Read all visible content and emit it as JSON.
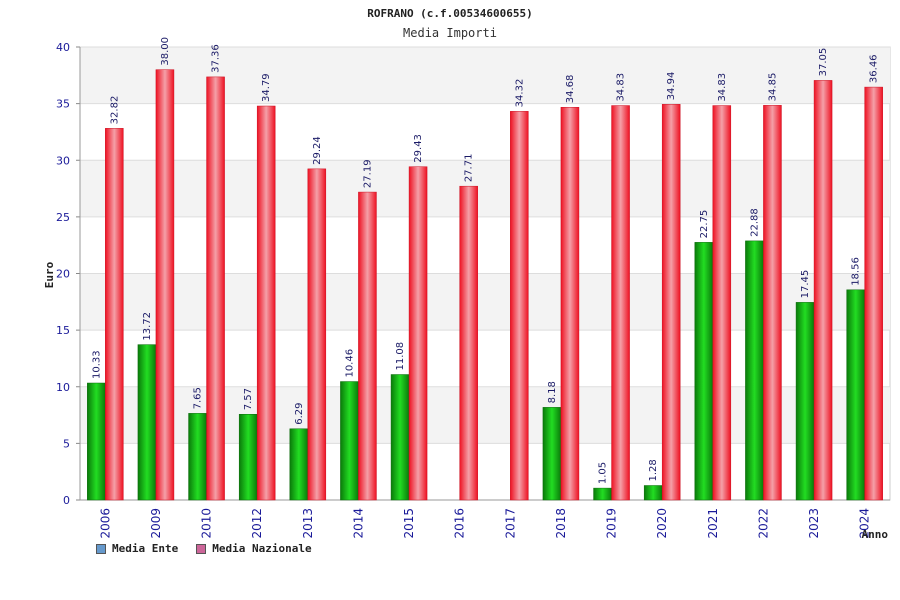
{
  "chart_data": {
    "type": "bar",
    "title": "ROFRANO (c.f.00534600655)",
    "subtitle": "Media Importi",
    "ylabel": "Euro",
    "xlabel": "Anno",
    "ylim": [
      0,
      40
    ],
    "yticks": [
      0,
      5,
      10,
      15,
      20,
      25,
      30,
      35,
      40
    ],
    "grid": true,
    "legend_position": "bottom-left",
    "categories": [
      "2006",
      "2009",
      "2010",
      "2012",
      "2013",
      "2014",
      "2015",
      "2016",
      "2017",
      "2018",
      "2019",
      "2020",
      "2021",
      "2022",
      "2023",
      "2024"
    ],
    "series": [
      {
        "name": "Media Ente",
        "legend_color": "#6699cc",
        "bar_color": "#11bb11",
        "values": [
          10.33,
          13.72,
          7.65,
          7.57,
          6.29,
          10.46,
          11.08,
          null,
          null,
          8.18,
          1.05,
          1.28,
          22.75,
          22.88,
          17.45,
          18.56
        ],
        "labels": [
          "10.33",
          "13.72",
          "7.65",
          "7.57",
          "6.29",
          "10.46",
          "11.08",
          "",
          "",
          "8.18",
          "1.05",
          "1.28",
          "22.75",
          "22.88",
          "17.45",
          "18.56"
        ]
      },
      {
        "name": "Media Nazionale",
        "legend_color": "#cc6699",
        "bar_color": "#ee1122",
        "values": [
          32.82,
          38.0,
          37.36,
          34.79,
          29.24,
          27.19,
          29.43,
          27.71,
          34.32,
          34.68,
          34.83,
          34.94,
          34.83,
          34.85,
          37.05,
          36.46
        ],
        "labels": [
          "32.82",
          "38.00",
          "37.36",
          "34.79",
          "29.24",
          "27.19",
          "29.43",
          "27.71",
          "34.32",
          "34.68",
          "34.83",
          "34.94",
          "34.83",
          "34.85",
          "37.05",
          "36.46"
        ]
      }
    ]
  }
}
